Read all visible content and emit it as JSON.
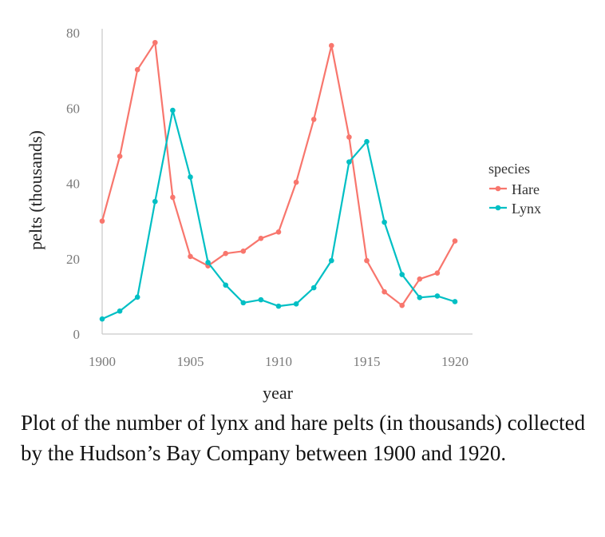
{
  "chart_data": {
    "type": "line",
    "title": "",
    "xlabel": "year",
    "ylabel": "pelts (thousands)",
    "xlim": [
      1900,
      1920
    ],
    "ylim": [
      0,
      80
    ],
    "x_ticks": [
      1900,
      1905,
      1910,
      1915,
      1920
    ],
    "y_ticks": [
      0,
      20,
      40,
      60,
      80
    ],
    "grid": false,
    "legend": {
      "title": "species",
      "position": "right"
    },
    "x": [
      1900,
      1901,
      1902,
      1903,
      1904,
      1905,
      1906,
      1907,
      1908,
      1909,
      1910,
      1911,
      1912,
      1913,
      1914,
      1915,
      1916,
      1917,
      1918,
      1919,
      1920
    ],
    "series": [
      {
        "name": "Hare",
        "color": "#f8766d",
        "values": [
          30,
          47.2,
          70.2,
          77.4,
          36.3,
          20.6,
          18.1,
          21.4,
          22,
          25.4,
          27.1,
          40.3,
          57,
          76.6,
          52.3,
          19.5,
          11.2,
          7.6,
          14.6,
          16.2,
          24.7
        ]
      },
      {
        "name": "Lynx",
        "color": "#00bfc4",
        "values": [
          4,
          6.1,
          9.8,
          35.2,
          59.4,
          41.7,
          19,
          13,
          8.3,
          9.1,
          7.4,
          8,
          12.3,
          19.5,
          45.7,
          51.1,
          29.7,
          15.8,
          9.7,
          10.1,
          8.6
        ]
      }
    ]
  },
  "caption": "Plot of the number of lynx and hare pelts (in thousands) collected by the Hudson’s Bay Company between 1900 and 1920."
}
